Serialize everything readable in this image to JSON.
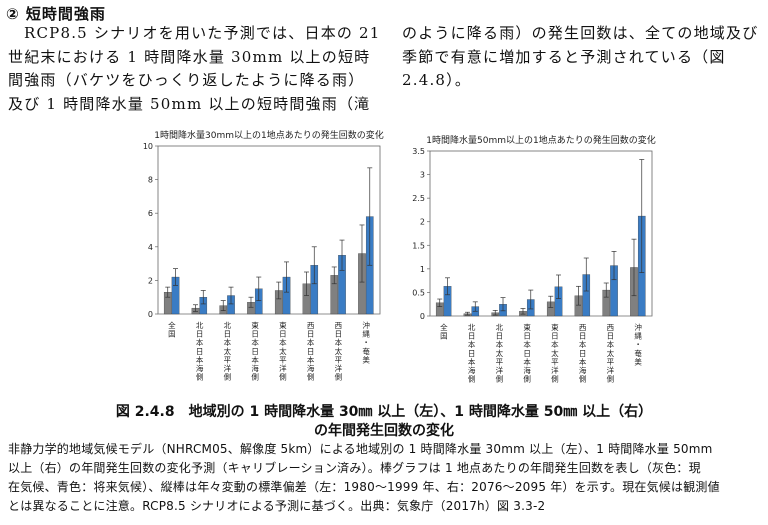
{
  "section": {
    "heading": "② 短時間強雨",
    "left_lines": [
      "RCP8.5 シナリオを用いた予測では、日本の 21",
      "世紀末における 1 時間降水量 30mm 以上の短時",
      "間強雨（バケツをひっくり返したように降る雨）",
      "及び 1 時間降水量 50mm 以上の短時間強雨（滝"
    ],
    "right_lines": [
      "のように降る雨）の発生回数は、全ての地域及び",
      "季節で有意に増加すると予測されている（図",
      "2.4.8）。"
    ]
  },
  "figure": {
    "caption_line1": "図 2.4.8　地域別の 1 時間降水量 30㎜ 以上（左）、1 時間降水量 50㎜ 以上（右）",
    "caption_line2": "の年間発生回数の変化",
    "note_lines": [
      "非静力学的地域気候モデル（NHRCM05、解像度 5km）による地域別の 1 時間降水量 30mm 以上（左）、1 時間降水量 50mm",
      "以上（右）の年間発生回数の変化予測（キャリブレーション済み）。棒グラフは 1 地点あたりの年間発生回数を表し（灰色：現",
      "在気候、青色：将来気候）、縦棒は年々変動の標準偏差（左：1980〜1999 年、右：2076〜2095 年）を示す。現在気候は観測値",
      "とは異なることに注意。RCP8.5 シナリオによる予測に基づく。出典：気象庁（2017h）図 3.3-2"
    ]
  },
  "colors": {
    "present": "#808080",
    "future": "#3a7cc4",
    "error": "#333333"
  },
  "chart_data": [
    {
      "type": "bar",
      "title": "1時間降水量30mm以上の1地点あたりの発生回数の変化",
      "categories": [
        "全国",
        "北日本日本海側",
        "北日本太平洋側",
        "東日本日本海側",
        "東日本太平洋側",
        "西日本日本海側",
        "西日本太平洋側",
        "沖縄・奄美"
      ],
      "series": [
        {
          "key": "present",
          "values": [
            1.3,
            0.35,
            0.5,
            0.7,
            1.4,
            1.8,
            2.3,
            3.6
          ],
          "errors": [
            0.3,
            0.2,
            0.3,
            0.3,
            0.5,
            0.7,
            0.5,
            1.7
          ]
        },
        {
          "key": "future",
          "values": [
            2.2,
            1.0,
            1.1,
            1.5,
            2.2,
            2.9,
            3.5,
            5.8
          ],
          "errors": [
            0.5,
            0.4,
            0.5,
            0.7,
            0.9,
            1.1,
            0.9,
            2.9
          ]
        }
      ],
      "ylim": [
        0,
        10
      ],
      "yticks": [
        "0",
        "2",
        "4",
        "6",
        "8",
        "10"
      ],
      "ytick_values": [
        0,
        2,
        4,
        6,
        8,
        10
      ]
    },
    {
      "type": "bar",
      "title": "1時間降水量50mm以上の1地点あたりの発生回数の変化",
      "categories": [
        "全国",
        "北日本日本海側",
        "北日本太平洋側",
        "東日本日本海側",
        "東日本太平洋側",
        "西日本日本海側",
        "西日本太平洋側",
        "沖縄・奄美"
      ],
      "series": [
        {
          "key": "present",
          "values": [
            0.28,
            0.05,
            0.07,
            0.1,
            0.3,
            0.43,
            0.55,
            1.03
          ],
          "errors": [
            0.08,
            0.03,
            0.05,
            0.06,
            0.12,
            0.2,
            0.15,
            0.6
          ]
        },
        {
          "key": "future",
          "values": [
            0.63,
            0.2,
            0.25,
            0.35,
            0.62,
            0.88,
            1.07,
            2.12
          ],
          "errors": [
            0.18,
            0.1,
            0.14,
            0.2,
            0.25,
            0.35,
            0.3,
            1.2
          ]
        }
      ],
      "ylim": [
        0,
        3.5
      ],
      "yticks": [
        "0",
        "0.5",
        "1",
        "1.5",
        "2",
        "2.5",
        "3",
        "3.5"
      ],
      "ytick_values": [
        0,
        0.5,
        1,
        1.5,
        2,
        2.5,
        3,
        3.5
      ]
    }
  ]
}
